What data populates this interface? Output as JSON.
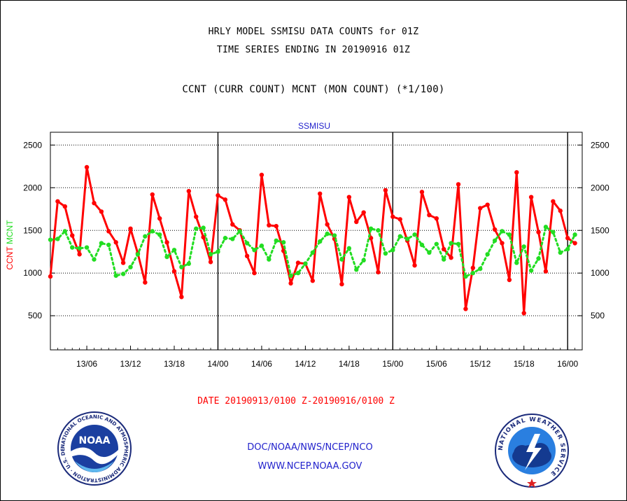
{
  "header": {
    "title_line1": "HRLY MODEL SSMISU DATA COUNTS for 01Z",
    "title_line2": "TIME SERIES ENDING IN 20190916 01Z",
    "subtitle": "CCNT (CURR COUNT) MCNT (MON COUNT) (*1/100)"
  },
  "footer": {
    "date_range": "DATE 20190913/0100 Z-20190916/0100 Z",
    "org": "DOC/NOAA/NWS/NCEP/NCO",
    "url": "WWW.NCEP.NOAA.GOV"
  },
  "logos": {
    "noaa": {
      "text": "NOAA",
      "ring_text": "NATIONAL OCEANIC AND ATMOSPHERIC ADMINISTRATION · U.S. DEPARTMENT OF COMMERCE"
    },
    "nws": {
      "ring_text": "NATIONAL WEATHER SERVICE"
    }
  },
  "colors": {
    "ccnt": "#ff0000",
    "mcnt": "#22dd22",
    "label_blue": "#2222cc"
  },
  "chart_data": {
    "type": "line",
    "title": "SSMISU",
    "ylabel": [
      "CCNT",
      "MCNT"
    ],
    "ylim": [
      100,
      2650
    ],
    "yticks": [
      500,
      1000,
      1500,
      2000,
      2500
    ],
    "x_hours_start_label": "13/01",
    "xlim_hours": [
      0,
      73
    ],
    "xticks": [
      {
        "hour": 5,
        "label": "13/06"
      },
      {
        "hour": 11,
        "label": "13/12"
      },
      {
        "hour": 17,
        "label": "13/18"
      },
      {
        "hour": 23,
        "label": "14/00"
      },
      {
        "hour": 29,
        "label": "14/06"
      },
      {
        "hour": 35,
        "label": "14/12"
      },
      {
        "hour": 41,
        "label": "14/18"
      },
      {
        "hour": 47,
        "label": "15/00"
      },
      {
        "hour": 53,
        "label": "15/06"
      },
      {
        "hour": 59,
        "label": "15/12"
      },
      {
        "hour": 65,
        "label": "15/18"
      },
      {
        "hour": 71,
        "label": "16/00"
      }
    ],
    "day_boundaries_hours": [
      23,
      47,
      71
    ],
    "grid": "horizontal-dotted",
    "series": [
      {
        "name": "CCNT",
        "style": "solid",
        "values": [
          960,
          1840,
          1780,
          1440,
          1220,
          2240,
          1820,
          1720,
          1490,
          1360,
          1120,
          1520,
          1230,
          890,
          1920,
          1640,
          1360,
          1020,
          720,
          1960,
          1660,
          1420,
          1130,
          1910,
          1860,
          1570,
          1500,
          1200,
          1000,
          2150,
          1560,
          1550,
          1260,
          880,
          1120,
          1110,
          910,
          1930,
          1570,
          1400,
          870,
          1890,
          1600,
          1710,
          1410,
          1010,
          1970,
          1660,
          1630,
          1380,
          1090,
          1950,
          1680,
          1640,
          1280,
          1180,
          2040,
          580,
          1060,
          1760,
          1800,
          1510,
          1350,
          920,
          2180,
          530,
          1890,
          1480,
          1020,
          1840,
          1730,
          1410,
          1350
        ]
      },
      {
        "name": "MCNT",
        "style": "dotted",
        "values": [
          1390,
          1400,
          1490,
          1300,
          1290,
          1300,
          1160,
          1350,
          1330,
          970,
          990,
          1070,
          1220,
          1430,
          1490,
          1450,
          1190,
          1270,
          1070,
          1110,
          1520,
          1530,
          1220,
          1250,
          1410,
          1400,
          1490,
          1350,
          1270,
          1320,
          1160,
          1380,
          1360,
          970,
          1000,
          1110,
          1240,
          1370,
          1460,
          1440,
          1160,
          1290,
          1040,
          1150,
          1520,
          1500,
          1230,
          1270,
          1430,
          1400,
          1450,
          1330,
          1240,
          1340,
          1160,
          1350,
          1340,
          960,
          1000,
          1050,
          1220,
          1380,
          1490,
          1450,
          1120,
          1310,
          1030,
          1170,
          1540,
          1480,
          1240,
          1280,
          1450
        ]
      }
    ]
  }
}
